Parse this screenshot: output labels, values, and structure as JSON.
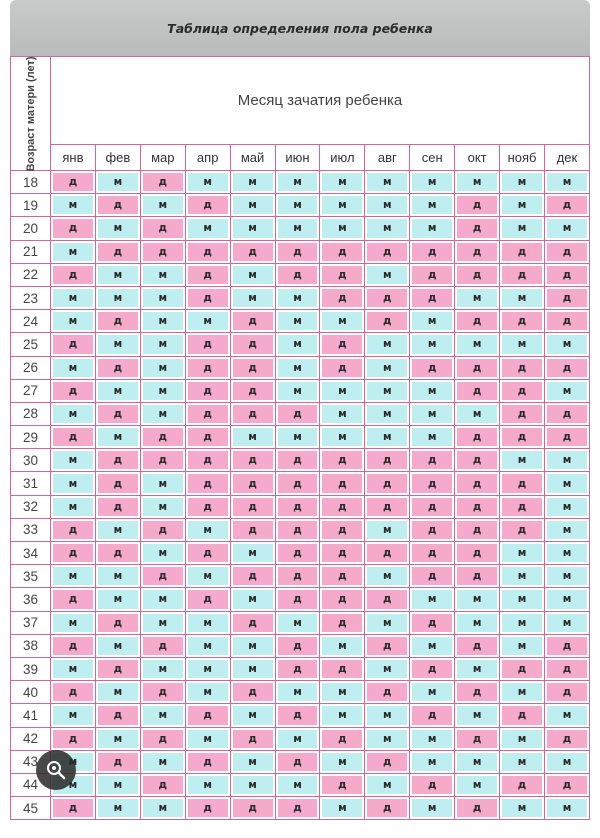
{
  "title": "Таблица определения пола ребенка",
  "age_header": "Возраст матери (лет)",
  "month_header": "Месяц зачатия ребенка",
  "months": [
    "янв",
    "фев",
    "мар",
    "апр",
    "май",
    "июн",
    "июл",
    "авг",
    "сен",
    "окт",
    "нояб",
    "дек"
  ],
  "colors": {
    "girl": "#f5a9cb",
    "boy": "#bfeef1",
    "grid": "#d2659a"
  },
  "icon": "lens-search-icon",
  "rows": [
    {
      "age": "18",
      "cells": [
        "д",
        "м",
        "д",
        "м",
        "м",
        "м",
        "м",
        "м",
        "м",
        "м",
        "м",
        "м"
      ]
    },
    {
      "age": "19",
      "cells": [
        "м",
        "д",
        "м",
        "д",
        "м",
        "м",
        "м",
        "м",
        "м",
        "д",
        "м",
        "д"
      ]
    },
    {
      "age": "20",
      "cells": [
        "д",
        "м",
        "д",
        "м",
        "м",
        "м",
        "м",
        "м",
        "м",
        "д",
        "м",
        "м"
      ]
    },
    {
      "age": "21",
      "cells": [
        "м",
        "д",
        "д",
        "д",
        "д",
        "д",
        "д",
        "д",
        "д",
        "д",
        "д",
        "д"
      ]
    },
    {
      "age": "22",
      "cells": [
        "д",
        "м",
        "м",
        "д",
        "м",
        "д",
        "д",
        "м",
        "д",
        "д",
        "д",
        "д"
      ]
    },
    {
      "age": "23",
      "cells": [
        "м",
        "м",
        "м",
        "д",
        "м",
        "м",
        "д",
        "д",
        "д",
        "м",
        "м",
        "д"
      ]
    },
    {
      "age": "24",
      "cells": [
        "м",
        "д",
        "м",
        "м",
        "д",
        "м",
        "м",
        "д",
        "м",
        "д",
        "д",
        "д"
      ]
    },
    {
      "age": "25",
      "cells": [
        "д",
        "м",
        "м",
        "д",
        "д",
        "м",
        "д",
        "м",
        "м",
        "м",
        "м",
        "м"
      ]
    },
    {
      "age": "26",
      "cells": [
        "м",
        "д",
        "м",
        "д",
        "д",
        "м",
        "д",
        "м",
        "д",
        "д",
        "д",
        "д"
      ]
    },
    {
      "age": "27",
      "cells": [
        "д",
        "м",
        "м",
        "д",
        "д",
        "м",
        "м",
        "м",
        "м",
        "д",
        "д",
        "м"
      ]
    },
    {
      "age": "28",
      "cells": [
        "м",
        "д",
        "м",
        "д",
        "д",
        "д",
        "м",
        "м",
        "м",
        "м",
        "д",
        "д"
      ]
    },
    {
      "age": "29",
      "cells": [
        "д",
        "м",
        "д",
        "д",
        "м",
        "м",
        "м",
        "м",
        "м",
        "д",
        "д",
        "д"
      ]
    },
    {
      "age": "30",
      "cells": [
        "м",
        "д",
        "д",
        "д",
        "д",
        "д",
        "д",
        "д",
        "д",
        "д",
        "м",
        "м"
      ]
    },
    {
      "age": "31",
      "cells": [
        "м",
        "д",
        "м",
        "д",
        "д",
        "д",
        "д",
        "д",
        "д",
        "д",
        "д",
        "м"
      ]
    },
    {
      "age": "32",
      "cells": [
        "м",
        "д",
        "м",
        "д",
        "д",
        "д",
        "д",
        "д",
        "д",
        "д",
        "д",
        "м"
      ]
    },
    {
      "age": "33",
      "cells": [
        "д",
        "м",
        "д",
        "м",
        "д",
        "д",
        "д",
        "м",
        "д",
        "д",
        "д",
        "м"
      ]
    },
    {
      "age": "34",
      "cells": [
        "д",
        "д",
        "м",
        "д",
        "м",
        "д",
        "д",
        "д",
        "д",
        "д",
        "м",
        "м"
      ]
    },
    {
      "age": "35",
      "cells": [
        "м",
        "м",
        "д",
        "м",
        "д",
        "д",
        "д",
        "м",
        "д",
        "д",
        "м",
        "м"
      ]
    },
    {
      "age": "36",
      "cells": [
        "д",
        "м",
        "м",
        "д",
        "м",
        "д",
        "д",
        "д",
        "м",
        "м",
        "м",
        "м"
      ]
    },
    {
      "age": "37",
      "cells": [
        "м",
        "д",
        "м",
        "м",
        "д",
        "м",
        "д",
        "м",
        "д",
        "м",
        "м",
        "м"
      ]
    },
    {
      "age": "38",
      "cells": [
        "д",
        "м",
        "д",
        "м",
        "м",
        "д",
        "м",
        "д",
        "м",
        "д",
        "м",
        "д"
      ]
    },
    {
      "age": "39",
      "cells": [
        "м",
        "д",
        "м",
        "м",
        "м",
        "д",
        "д",
        "м",
        "д",
        "м",
        "д",
        "д"
      ]
    },
    {
      "age": "40",
      "cells": [
        "д",
        "м",
        "д",
        "м",
        "д",
        "м",
        "м",
        "д",
        "м",
        "д",
        "м",
        "д"
      ]
    },
    {
      "age": "41",
      "cells": [
        "м",
        "д",
        "м",
        "д",
        "м",
        "д",
        "м",
        "м",
        "д",
        "м",
        "д",
        "м"
      ]
    },
    {
      "age": "42",
      "cells": [
        "д",
        "м",
        "д",
        "м",
        "д",
        "м",
        "д",
        "м",
        "м",
        "д",
        "м",
        "д"
      ]
    },
    {
      "age": "43",
      "cells": [
        "м",
        "д",
        "м",
        "д",
        "м",
        "д",
        "м",
        "д",
        "м",
        "м",
        "м",
        "м"
      ]
    },
    {
      "age": "44",
      "cells": [
        "м",
        "м",
        "д",
        "м",
        "м",
        "м",
        "д",
        "м",
        "д",
        "м",
        "д",
        "д"
      ]
    },
    {
      "age": "45",
      "cells": [
        "д",
        "м",
        "м",
        "д",
        "д",
        "д",
        "м",
        "д",
        "м",
        "д",
        "м",
        "м"
      ]
    }
  ]
}
